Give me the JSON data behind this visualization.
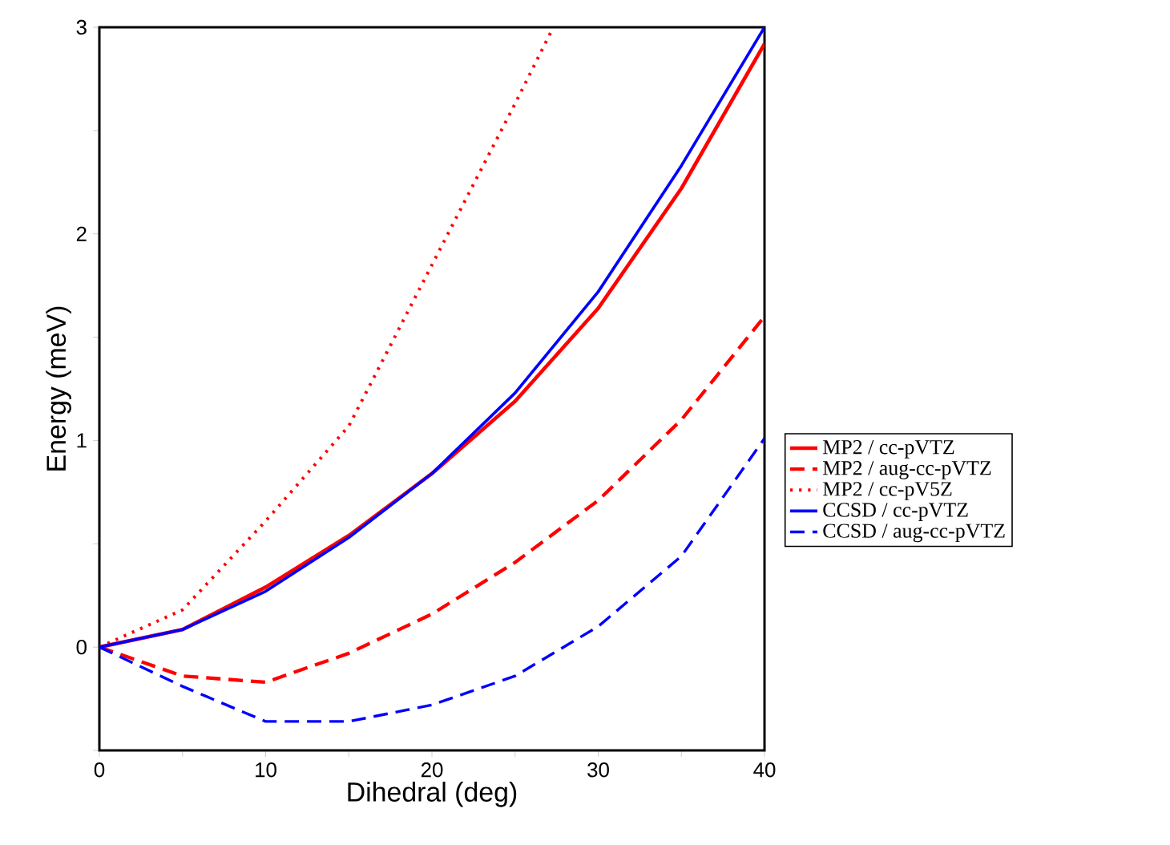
{
  "chart_data": {
    "type": "line",
    "xlabel": "Dihedral (deg)",
    "ylabel": "Energy (meV)",
    "xlim": [
      0,
      40
    ],
    "ylim": [
      -0.5,
      3
    ],
    "xticks": [
      0,
      {
        "value": 5,
        "label": null
      },
      10,
      {
        "value": 15,
        "label": null
      },
      20,
      {
        "value": 25,
        "label": null
      },
      30,
      {
        "value": 35,
        "label": null
      },
      40
    ],
    "yticks": [
      {
        "value": -0.5,
        "label": null
      },
      0,
      {
        "value": 0.5,
        "label": null
      },
      1,
      {
        "value": 1.5,
        "label": null
      },
      2,
      {
        "value": 2.5,
        "label": null
      },
      3
    ],
    "x": [
      0,
      5,
      10,
      15,
      20,
      25,
      30,
      35,
      40
    ],
    "legend": "right",
    "grid": false,
    "series": [
      {
        "name": "MP2 / cc-pVTZ",
        "color": "#ff0000",
        "line_style": "solid",
        "values": [
          0,
          0.085,
          0.29,
          0.54,
          0.84,
          1.19,
          1.64,
          2.22,
          2.92
        ]
      },
      {
        "name": "MP2 / aug-cc-pVTZ",
        "color": "#ff0000",
        "line_style": "dashed",
        "values": [
          0,
          -0.14,
          -0.17,
          -0.03,
          0.16,
          0.41,
          0.71,
          1.1,
          1.6
        ]
      },
      {
        "name": "MP2 / cc-pV5Z",
        "color": "#ff0000",
        "line_style": "dotted",
        "x": [
          0,
          5,
          10,
          15,
          20,
          25,
          27.3
        ],
        "values": [
          0,
          0.18,
          0.61,
          1.07,
          1.85,
          2.63,
          3
        ]
      },
      {
        "name": "CCSD / cc-pVTZ",
        "color": "#0000ff",
        "line_style": "solid",
        "values": [
          0,
          0.085,
          0.27,
          0.53,
          0.84,
          1.23,
          1.72,
          2.33,
          3
        ]
      },
      {
        "name": "CCSD / aug-cc-pVTZ",
        "color": "#0000ff",
        "line_style": "dashed",
        "values": [
          0,
          -0.19,
          -0.36,
          -0.36,
          -0.28,
          -0.14,
          0.1,
          0.44,
          1.01
        ]
      }
    ]
  }
}
